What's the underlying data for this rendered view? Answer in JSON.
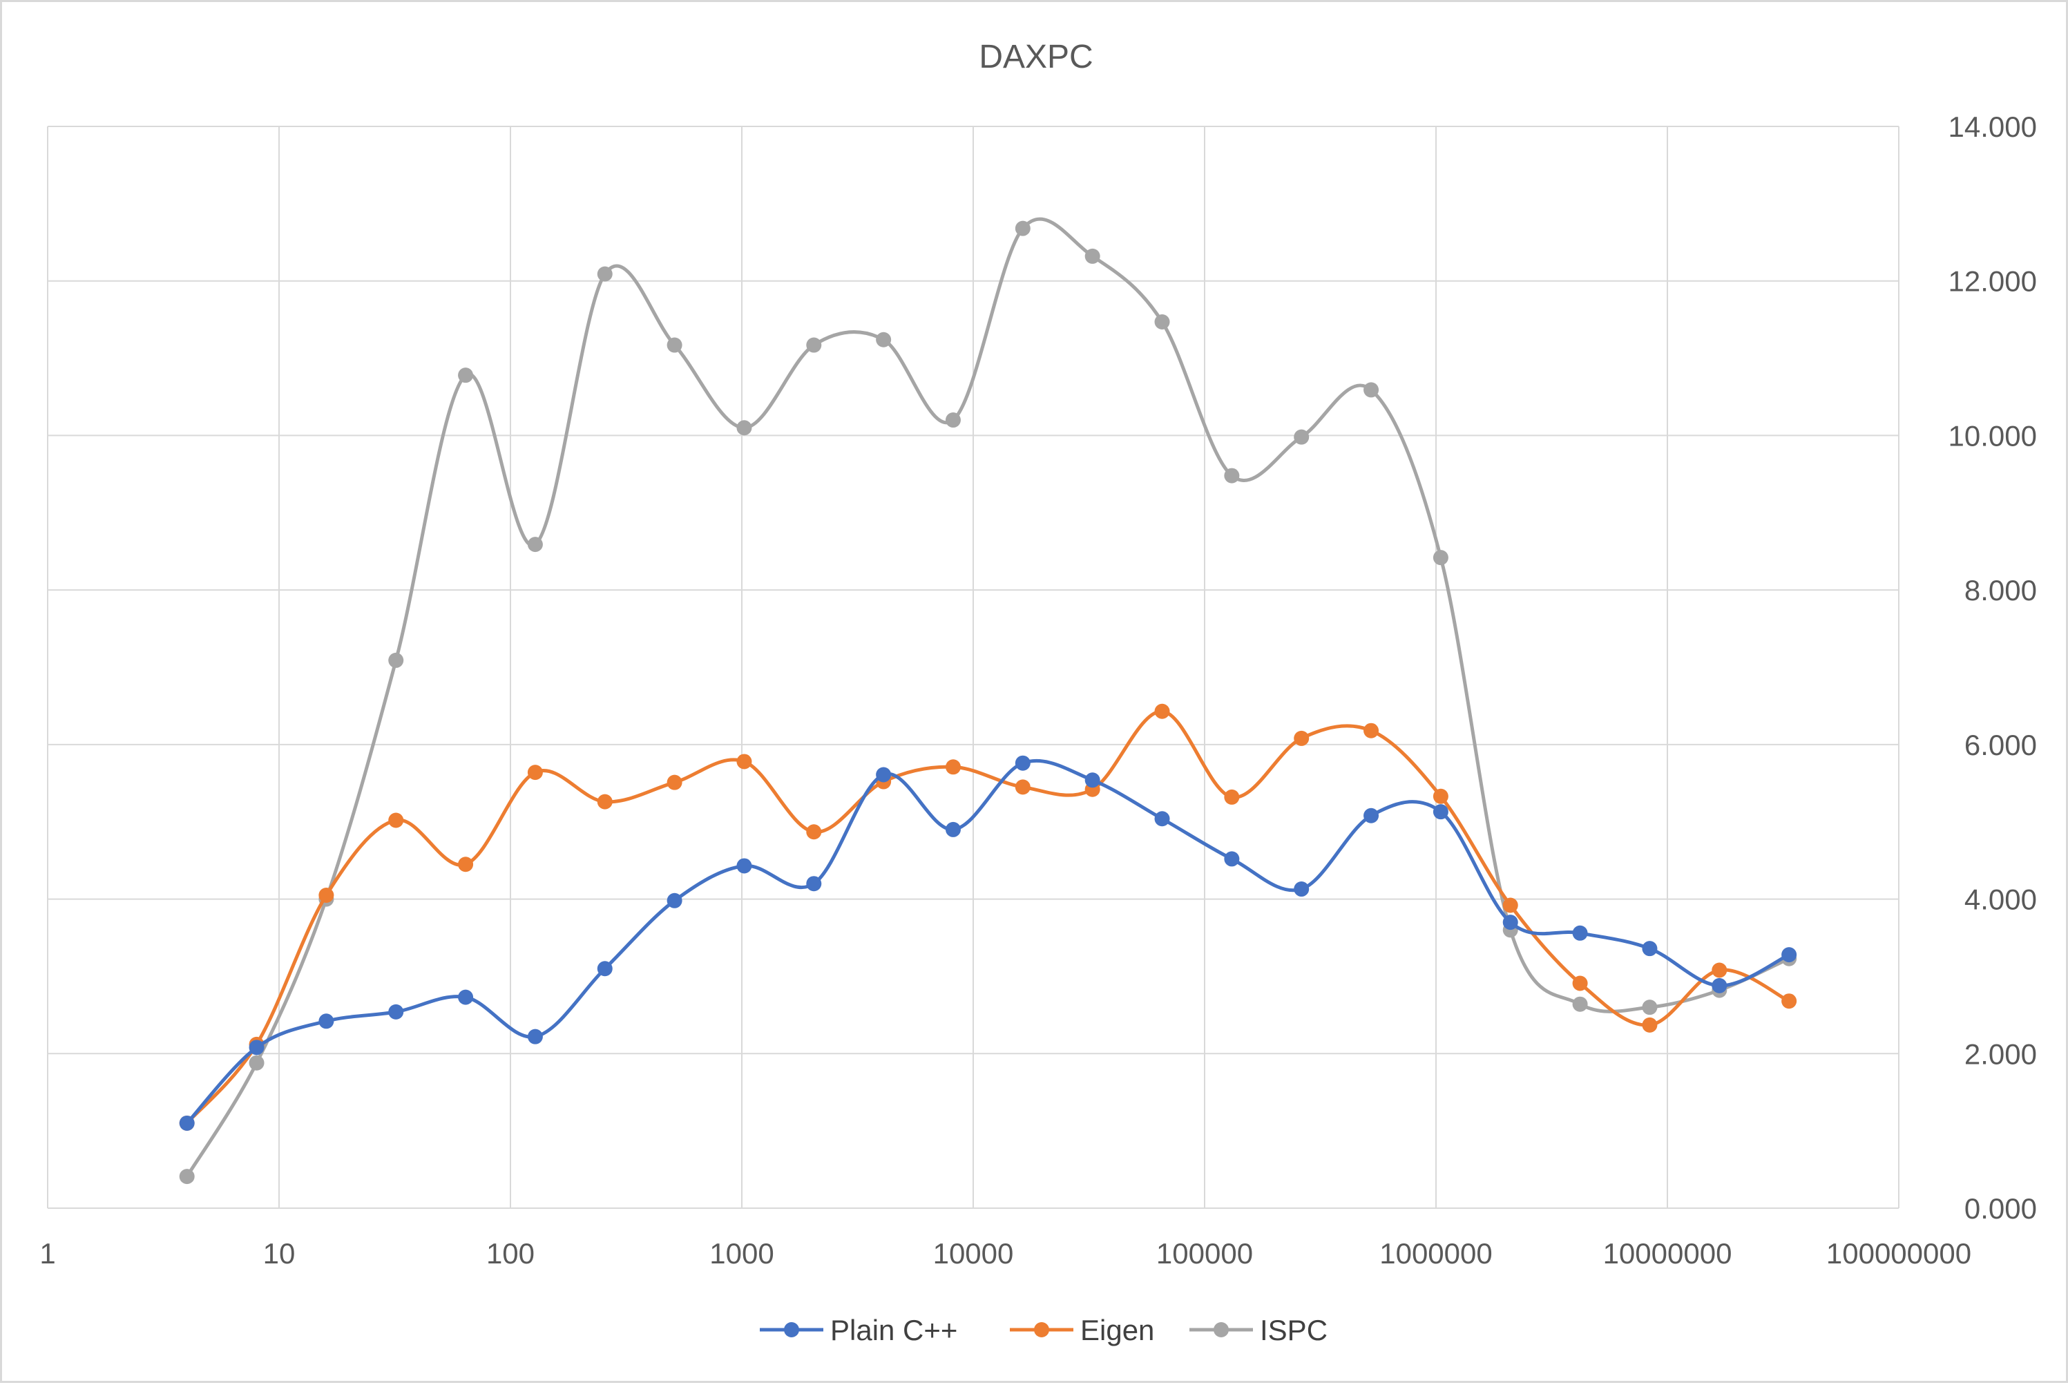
{
  "chart_data": {
    "type": "line",
    "title": "DAXPC",
    "xlabel": "",
    "ylabel": "",
    "x_scale": "log10",
    "xlim": [
      1,
      100000000
    ],
    "ylim": [
      0,
      14
    ],
    "y_axis_position": "right",
    "grid": true,
    "smooth": true,
    "legend_position": "bottom",
    "x_tick_labels": [
      "1",
      "10",
      "100",
      "1000",
      "10000",
      "100000",
      "1000000",
      "10000000",
      "100000000"
    ],
    "y_tick_labels": [
      "0.000",
      "2.000",
      "4.000",
      "6.000",
      "8.000",
      "10.000",
      "12.000",
      "14.000"
    ],
    "x": [
      4,
      8,
      16,
      32,
      64,
      128,
      256,
      512,
      1024,
      2048,
      4096,
      8192,
      16384,
      32768,
      65536,
      131072,
      262144,
      524288,
      1048576,
      2097152,
      4194304,
      8388608,
      16777216,
      33554432
    ],
    "series": [
      {
        "name": "Plain C++",
        "color": "#4472C4",
        "values": [
          1.1,
          2.08,
          2.42,
          2.54,
          2.73,
          2.22,
          3.1,
          3.98,
          4.43,
          4.2,
          5.61,
          4.9,
          5.76,
          5.54,
          5.04,
          4.52,
          4.13,
          5.08,
          5.13,
          3.7,
          3.56,
          3.36,
          2.88,
          3.28
        ]
      },
      {
        "name": "Eigen",
        "color": "#ED7D31",
        "values": [
          1.1,
          2.12,
          4.05,
          5.02,
          4.45,
          5.64,
          5.26,
          5.51,
          5.78,
          4.87,
          5.52,
          5.71,
          5.45,
          5.42,
          6.43,
          5.32,
          6.08,
          6.18,
          5.33,
          3.92,
          2.91,
          2.37,
          3.08,
          2.68
        ]
      },
      {
        "name": "ISPC",
        "color": "#A5A5A5",
        "values": [
          0.41,
          1.88,
          4.0,
          7.09,
          10.78,
          8.59,
          12.09,
          11.17,
          10.1,
          11.17,
          11.24,
          10.2,
          12.68,
          12.32,
          11.47,
          9.48,
          9.98,
          10.59,
          8.42,
          3.6,
          2.64,
          2.6,
          2.82,
          3.23
        ]
      }
    ]
  }
}
